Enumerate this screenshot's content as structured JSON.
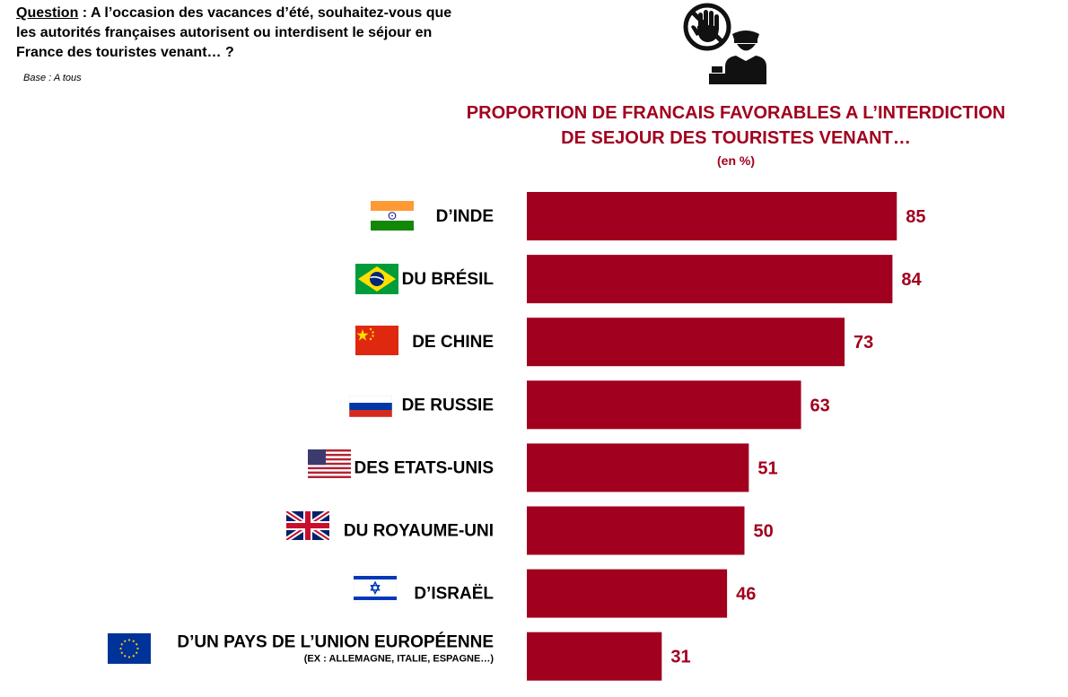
{
  "question": {
    "label": "Question",
    "text": " : A l’occasion des vacances d’été, souhaitez-vous que les autorités françaises autorisent ou interdisent le séjour en France des touristes venant… ?"
  },
  "base": "Base : A tous",
  "icon": "stop-hand-border-officer-icon",
  "accent_color": "#a1001e",
  "chart_data": {
    "type": "bar",
    "orientation": "horizontal",
    "title": "PROPORTION DE FRANCAIS FAVORABLES A L’INTERDICTION DE SEJOUR DES TOURISTES VENANT…",
    "title_line1": "PROPORTION DE FRANCAIS FAVORABLES A L’INTERDICTION",
    "title_line2": "DE SEJOUR DES TOURISTES VENANT…",
    "unit": "(en %)",
    "xlim": [
      0,
      100
    ],
    "grid": false,
    "bar_color": "#a1001e",
    "categories": [
      {
        "label": "D’INDE",
        "flag": "india-flag-icon",
        "value": 85
      },
      {
        "label": "DU BRÉSIL",
        "flag": "brazil-flag-icon",
        "value": 84
      },
      {
        "label": "DE CHINE",
        "flag": "china-flag-icon",
        "value": 73
      },
      {
        "label": "DE RUSSIE",
        "flag": "russia-flag-icon",
        "value": 63
      },
      {
        "label": "DES ETATS-UNIS",
        "flag": "usa-flag-icon",
        "value": 51
      },
      {
        "label": "DU ROYAUME-UNI",
        "flag": "uk-flag-icon",
        "value": 50
      },
      {
        "label": "D’ISRAËL",
        "flag": "israel-flag-icon",
        "value": 46
      },
      {
        "label": "D’UN PAYS DE L’UNION EUROPÉENNE",
        "sublabel": "(EX : ALLEMAGNE, ITALIE, ESPAGNE…)",
        "flag": "eu-flag-icon",
        "value": 31
      }
    ]
  }
}
